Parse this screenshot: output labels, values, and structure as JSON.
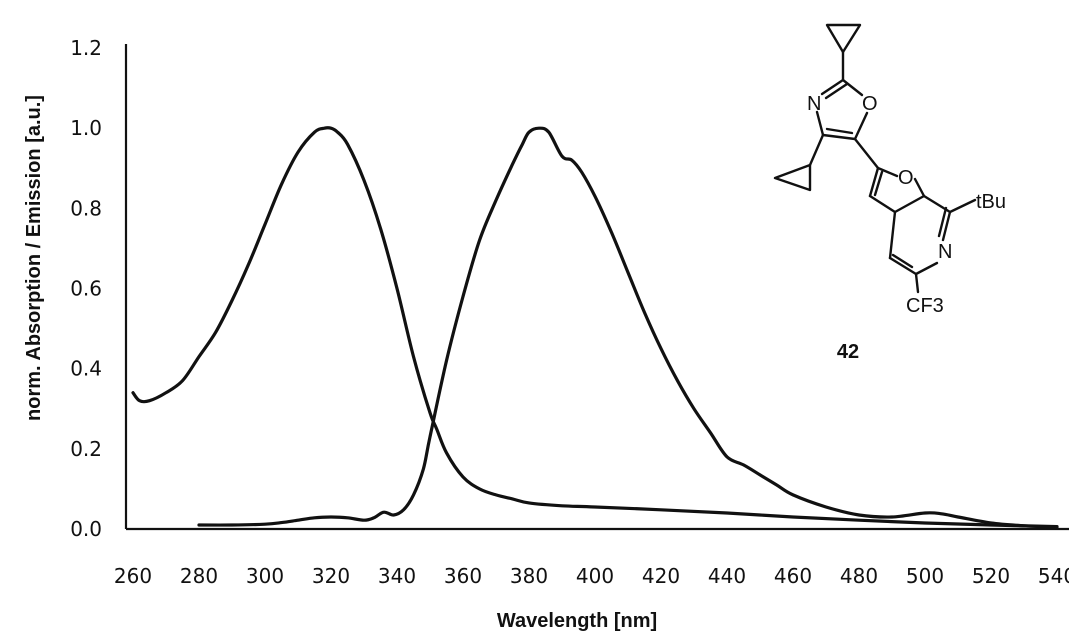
{
  "chart_data": {
    "type": "line",
    "xlabel": "Wavelength [nm]",
    "ylabel": "norm. Absorption / Emission [a.u.]",
    "xlim": [
      260,
      540
    ],
    "ylim": [
      0,
      1.2
    ],
    "x_ticks": [
      "260",
      "280",
      "300",
      "320",
      "340",
      "360",
      "380",
      "400",
      "420",
      "440",
      "460",
      "480",
      "500",
      "520",
      "540"
    ],
    "y_ticks": [
      "0.0",
      "0.2",
      "0.4",
      "0.6",
      "0.8",
      "1.0",
      "1.2"
    ],
    "grid": false,
    "series": [
      {
        "x": [
          260,
          262,
          265,
          270,
          275,
          280,
          285,
          290,
          295,
          300,
          305,
          310,
          315,
          318,
          320,
          322,
          325,
          330,
          335,
          340,
          345,
          350,
          352,
          355,
          360,
          365,
          370,
          375,
          380,
          390,
          400,
          420,
          440,
          460,
          480,
          500,
          520,
          540
        ],
        "y": [
          0.34,
          0.32,
          0.32,
          0.34,
          0.37,
          0.43,
          0.49,
          0.57,
          0.66,
          0.76,
          0.86,
          0.94,
          0.99,
          1.0,
          1.0,
          0.99,
          0.96,
          0.87,
          0.75,
          0.6,
          0.43,
          0.29,
          0.25,
          0.19,
          0.13,
          0.1,
          0.085,
          0.075,
          0.065,
          0.058,
          0.055,
          0.048,
          0.04,
          0.03,
          0.022,
          0.015,
          0.01,
          0.006
        ]
      },
      {
        "x": [
          280,
          290,
          300,
          305,
          310,
          315,
          320,
          325,
          330,
          333,
          336,
          339,
          342,
          345,
          348,
          350,
          355,
          360,
          365,
          370,
          375,
          378,
          380,
          383,
          386,
          390,
          393,
          396,
          400,
          405,
          410,
          415,
          420,
          425,
          430,
          435,
          440,
          445,
          450,
          455,
          460,
          470,
          480,
          490,
          500,
          505,
          510,
          520,
          530,
          540
        ],
        "y": [
          0.01,
          0.01,
          0.012,
          0.016,
          0.022,
          0.028,
          0.03,
          0.028,
          0.022,
          0.028,
          0.042,
          0.035,
          0.048,
          0.085,
          0.15,
          0.23,
          0.42,
          0.58,
          0.72,
          0.82,
          0.91,
          0.96,
          0.99,
          1.0,
          0.99,
          0.93,
          0.92,
          0.89,
          0.83,
          0.74,
          0.64,
          0.54,
          0.45,
          0.37,
          0.3,
          0.24,
          0.18,
          0.16,
          0.135,
          0.11,
          0.085,
          0.055,
          0.035,
          0.03,
          0.04,
          0.038,
          0.03,
          0.015,
          0.008,
          0.004
        ]
      }
    ],
    "compound_label": "42",
    "structure_atoms": [
      "N",
      "O",
      "O",
      "tBu",
      "N",
      "CF3"
    ]
  }
}
